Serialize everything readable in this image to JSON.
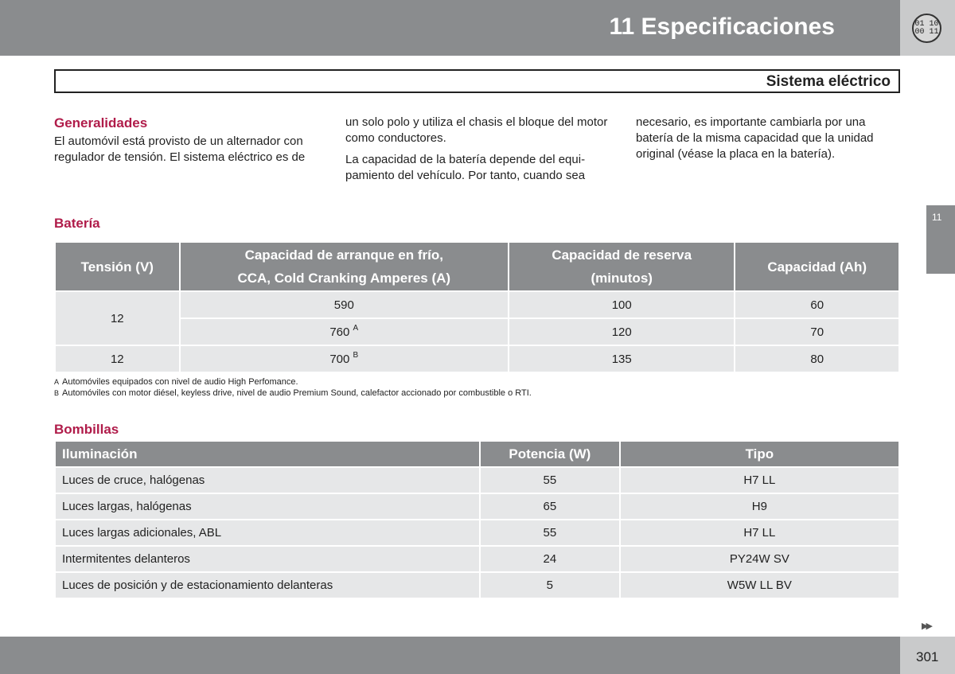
{
  "header": {
    "title": "11 Especificaciones",
    "badge_top": "01 10",
    "badge_bottom": "00 11"
  },
  "section_title": "Sistema eléctrico",
  "side_tab_label": "11",
  "generalidades": {
    "heading": "Generalidades",
    "col1": "El automóvil está provisto de un alternador con regulador de tensión. El sistema eléctrico es de",
    "col2_p1": "un solo polo y utiliza el chasis el bloque del motor como conductores.",
    "col2_p2": "La capacidad de la batería depende del equi-pamiento del vehículo. Por tanto, cuando sea",
    "col3": "necesario, es importante cambiarla por una batería de la misma capacidad que la unidad original (véase la placa en la batería)."
  },
  "bateria": {
    "heading": "Batería",
    "headers": {
      "voltage": "Tensión (V)",
      "cca_line1": "Capacidad de arranque en frío,",
      "cca_line2": "CCA, Cold Cranking Amperes (A)",
      "reserve_line1": "Capacidad de reserva",
      "reserve_line2": "(minutos)",
      "capacity": "Capacidad (Ah)"
    },
    "rows": [
      {
        "voltage": "12",
        "cca": "590",
        "cca_note": "",
        "reserve": "100",
        "capacity": "60"
      },
      {
        "voltage": "",
        "cca": "760",
        "cca_note": "A",
        "reserve": "120",
        "capacity": "70"
      },
      {
        "voltage": "12",
        "cca": "700",
        "cca_note": "B",
        "reserve": "135",
        "capacity": "80"
      }
    ],
    "footnotes": [
      {
        "mark": "A",
        "text": "Automóviles equipados con nivel de audio High Perfomance."
      },
      {
        "mark": "B",
        "text": "Automóviles con motor diésel, keyless drive, nivel de audio Premium Sound, calefactor accionado por combustible o RTI."
      }
    ]
  },
  "bombillas": {
    "heading": "Bombillas",
    "headers": {
      "lighting": "Iluminación",
      "power": "Potencia (W)",
      "type": "Tipo"
    },
    "rows": [
      {
        "lighting": "Luces de cruce, halógenas",
        "power": "55",
        "type": "H7 LL"
      },
      {
        "lighting": "Luces largas, halógenas",
        "power": "65",
        "type": "H9"
      },
      {
        "lighting": "Luces largas adicionales, ABL",
        "power": "55",
        "type": "H7 LL"
      },
      {
        "lighting": "Intermitentes delanteros",
        "power": "24",
        "type": "PY24W SV"
      },
      {
        "lighting": "Luces de posición y de estacionamiento delanteras",
        "power": "5",
        "type": "W5W LL BV"
      }
    ]
  },
  "next_page_icon": "double-right-arrow-icon",
  "page_number": "301",
  "colors": {
    "heading": "#b01c4a",
    "bar": "#8a8c8e",
    "cell": "#e6e7e8"
  }
}
